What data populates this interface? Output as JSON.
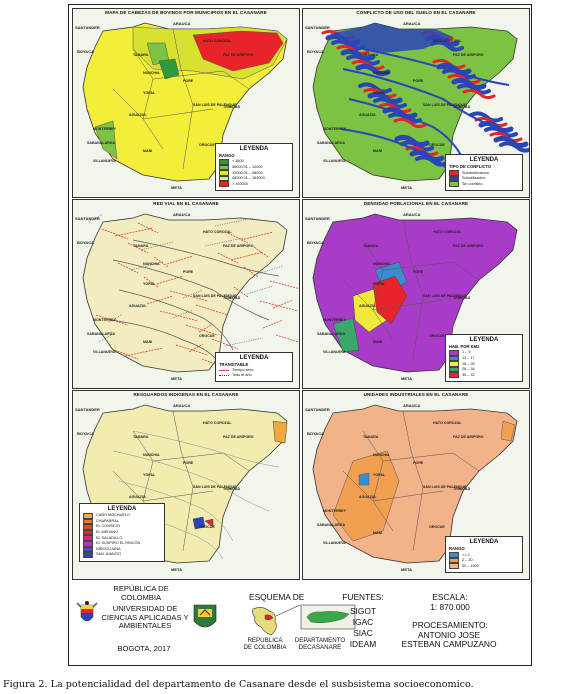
{
  "caption": "Figura 2. La potencialidad del departamento de Casanare desde el susbsistema socioeconomico.",
  "place_labels": {
    "arauca": "ARAUCA",
    "boyaca": "BOYACA",
    "santander": "SANTANDER",
    "meta": "META",
    "hato_corozal": "HATO COROZAL",
    "paz_de_ariporo": "PAZ DE ARIPORO",
    "tamara": "TAMARA",
    "pore": "PORE",
    "nunchia": "NUNCHIA",
    "trinidad": "TRINIDAD",
    "yopal": "YOPAL",
    "san_luis": "SAN LUIS DE PALENQUE",
    "aguazul": "AGUAZUL",
    "orocue": "OROCUE",
    "monterrey": "MONTERREY",
    "mani": "MANI",
    "villanueva": "VILLANUEVA",
    "sabanalarga": "SABANALARGA"
  },
  "panels": [
    {
      "title": "MAPA DE CABEZAS DE BOVINOS POR MUNICIPIOS EN EL CASANARE",
      "legend_title": "LEYENDA",
      "legend_sub": "RANGO",
      "legend_items": [
        {
          "label": "< 3600",
          "color": "#2e9a3c"
        },
        {
          "label": "36000.01 – 12000",
          "color": "#7cc243"
        },
        {
          "label": "12000.01 – 48000",
          "color": "#d8e030"
        },
        {
          "label": "48000.01 – 163000",
          "color": "#f2ee3a"
        },
        {
          "label": "> 192000",
          "color": "#e8242a"
        }
      ]
    },
    {
      "title": "CONFLICTO DE USO DEL SUELO EN EL CASANARE",
      "legend_title": "LEYENDA",
      "legend_sub": "TIPO DE CONFLICTO",
      "legend_items": [
        {
          "label": "Sobreutilizacion",
          "color": "#e8242a"
        },
        {
          "label": "Subutilizacion",
          "color": "#2b45b8"
        },
        {
          "label": "Sin conflicto",
          "color": "#7cc243"
        }
      ]
    },
    {
      "title": "RED VIAL EN EL CASANARE",
      "legend_title": "LEYENDA",
      "legend_sub": "TRANSITABLE",
      "legend_items": [
        {
          "label": "Tiempo seco",
          "color": "#e03a2a",
          "style": "dashed"
        },
        {
          "label": "Todo el año",
          "color": "#333333",
          "style": "dotted"
        }
      ]
    },
    {
      "title": "DENSIDAD POBLACIONAL EN EL CASANARE",
      "legend_title": "LEYENDA",
      "legend_sub": "HAB. POR KM2",
      "legend_items": [
        {
          "label": "1 – 9",
          "color": "#a83cc8"
        },
        {
          "label": "13 – 17",
          "color": "#3a8bd0"
        },
        {
          "label": "18 – 25",
          "color": "#f0ea3a"
        },
        {
          "label": "26 – 34",
          "color": "#3aa86a"
        },
        {
          "label": "35 – 42",
          "color": "#e8242a"
        }
      ]
    },
    {
      "title": "RESGUARDOS INDIGENAS EN EL CASANARE",
      "legend_title": "LEYENDA",
      "legend_sub": "",
      "legend_items": [
        {
          "label": "CAÑO MOCHUELO",
          "color": "#f2a93a"
        },
        {
          "label": "CHAPARRAL",
          "color": "#e07a20"
        },
        {
          "label": "EL CONSEJO",
          "color": "#d84a2a"
        },
        {
          "label": "EL MEDANO",
          "color": "#e8242a"
        },
        {
          "label": "EL SALADILLO",
          "color": "#c8307a"
        },
        {
          "label": "EL SUSPIRO EL RINCÓN",
          "color": "#a83cc8"
        },
        {
          "label": "NIÑOCUJANA",
          "color": "#5a4ab8"
        },
        {
          "label": "SAN JUANITO",
          "color": "#2b45b8"
        }
      ]
    },
    {
      "title": "UNIDADES INDUSTRIALES EN EL CASANARE",
      "legend_title": "LEYENDA",
      "legend_sub": "RANGO",
      "legend_items": [
        {
          "label": "<= 2",
          "color": "#3a8bd0"
        },
        {
          "label": "2 – 30",
          "color": "#f0a050"
        },
        {
          "label": "30 – 1500",
          "color": "#f2b28a"
        }
      ]
    }
  ],
  "footer": {
    "republica": "REPÚBLICA DE COLOMBIA",
    "universidad": "UNIVERSIDAD DE CIENCIAS APLICADAS Y AMBIENTALES",
    "ciudad_fecha": "BOGOTA, 2017",
    "esquema_title": "ESQUEMA DE",
    "esquema_republica": "REPUBLICA DE COLOMBIA",
    "esquema_departamento": "DEPARTAMENTO DECASANARE",
    "fuentes_title": "FUENTES:",
    "fuentes": [
      "SIGOT",
      "IGAC",
      "SIAC",
      "IDEAM"
    ],
    "escala_title": "ESCALA:",
    "escala_value": "1: 870.000",
    "procesamiento_title": "PROCESAMIENTO:",
    "procesamiento_name": "ANTONIO JOSE ESTEBAN CAMPUZANO"
  }
}
